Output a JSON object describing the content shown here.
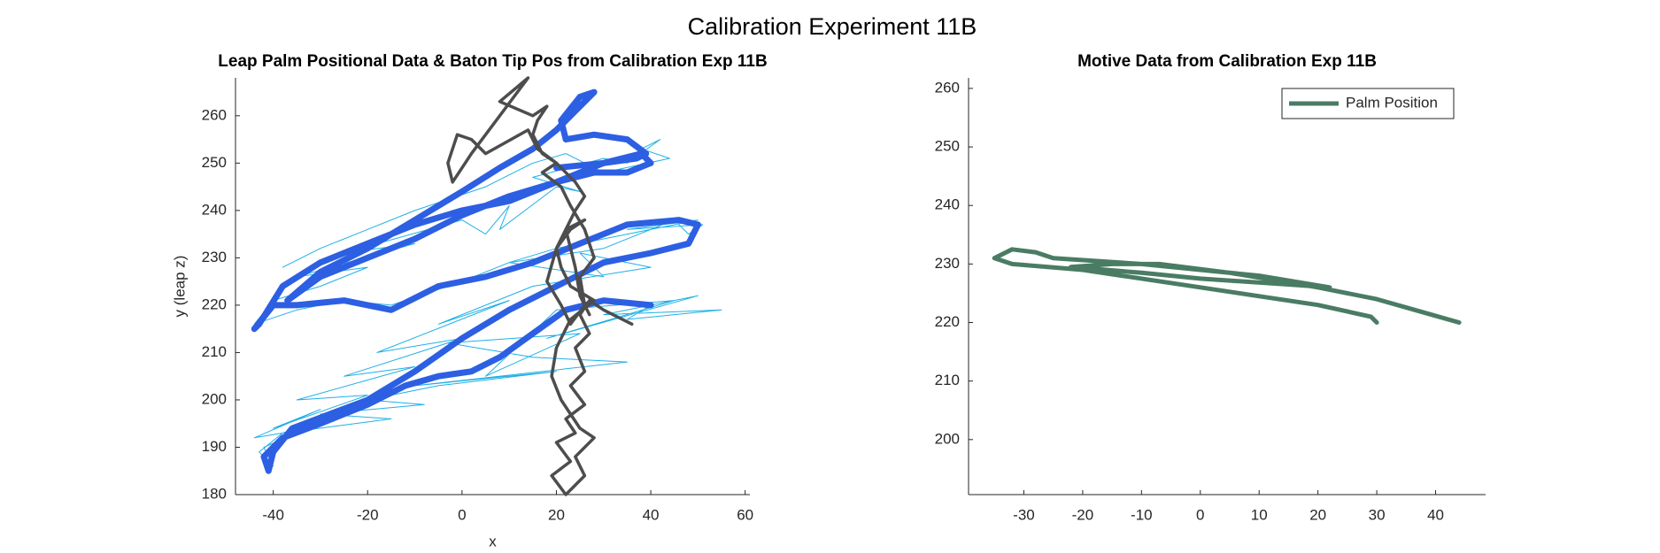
{
  "title": "Calibration Experiment 11B",
  "chart_data": [
    {
      "type": "line",
      "title": "Leap Palm Positional Data & Baton Tip Pos from Calibration Exp 11B",
      "xlabel": "x",
      "ylabel": "y (leap z)",
      "xlim": [
        -48,
        61
      ],
      "ylim": [
        180,
        268
      ],
      "xticks": [
        -40,
        -20,
        0,
        20,
        40,
        60
      ],
      "yticks": [
        180,
        190,
        200,
        210,
        220,
        230,
        240,
        250,
        260
      ],
      "series": [
        {
          "color": "#1fb0e6",
          "width": 1,
          "x": [
            40,
            35,
            55,
            30,
            50,
            18,
            45,
            20,
            5,
            25,
            -3,
            15,
            35,
            -10,
            20,
            -5,
            -20,
            -8,
            -30,
            -15,
            -38,
            -28,
            -42,
            -40,
            -43,
            -38,
            -44,
            -30,
            -40,
            -20,
            -35,
            -10,
            -25,
            0,
            -18,
            10,
            -5,
            15,
            40,
            25,
            30,
            10,
            30,
            45,
            48,
            51,
            35,
            50,
            20,
            10,
            0,
            -15,
            -25,
            -35,
            -44,
            -40,
            -30,
            -20,
            -35,
            -10,
            -25,
            0,
            5,
            10,
            8,
            20,
            25,
            15,
            30,
            35,
            42,
            38,
            44,
            30,
            22,
            15,
            5,
            -10,
            -20,
            -30,
            -38
          ],
          "values": [
            220,
            217,
            219,
            218,
            222,
            213,
            221,
            219,
            205,
            214,
            212,
            209,
            208,
            203,
            206,
            203,
            200,
            199,
            197,
            196,
            193,
            196,
            190,
            186,
            189,
            193,
            192,
            198,
            194,
            201,
            200,
            207,
            205,
            213,
            210,
            221,
            216,
            224,
            228,
            231,
            226,
            229,
            232,
            238,
            235,
            237,
            236,
            238,
            232,
            229,
            225,
            220,
            221,
            219,
            216,
            221,
            224,
            228,
            226,
            233,
            231,
            238,
            235,
            241,
            236,
            245,
            244,
            247,
            251,
            250,
            255,
            253,
            251,
            248,
            252,
            250,
            245,
            240,
            236,
            232,
            228
          ]
        },
        {
          "color": "#2d5fe3",
          "width": 7,
          "x": [
            40,
            30,
            22,
            15,
            8,
            2,
            -5,
            -12,
            -20,
            -30,
            -38,
            -42,
            -41,
            -40,
            -36,
            -28,
            -20,
            -10,
            0,
            10,
            20,
            30,
            40,
            48,
            50,
            46,
            35,
            25,
            15,
            5,
            -5,
            -15,
            -25,
            -35,
            -40,
            -44,
            -43,
            -38,
            -30,
            -20,
            -10,
            0,
            10,
            20,
            30,
            38,
            40,
            35,
            28,
            20,
            10,
            0,
            -10,
            -20,
            -30,
            -37,
            -30,
            -20,
            -10,
            0,
            8,
            15,
            20,
            25,
            28,
            25,
            21,
            22,
            28,
            35,
            39,
            37,
            30,
            20
          ],
          "values": [
            220,
            221,
            219,
            214,
            209,
            206,
            205,
            203,
            199,
            195,
            192,
            188,
            185,
            189,
            194,
            197,
            200,
            206,
            213,
            219,
            224,
            229,
            231,
            233,
            237,
            238,
            237,
            233,
            229,
            226,
            224,
            219,
            221,
            220,
            220,
            215,
            216,
            224,
            229,
            233,
            237,
            240,
            242,
            246,
            250,
            252,
            250,
            248,
            248,
            246,
            243,
            239,
            234,
            230,
            226,
            221,
            227,
            232,
            238,
            244,
            249,
            253,
            257,
            262,
            265,
            264,
            259,
            255,
            256,
            255,
            252,
            251,
            250,
            249
          ]
        },
        {
          "color": "#4d4d4d",
          "width": 3.5,
          "x": [
            36,
            30,
            27,
            25,
            27,
            24,
            26,
            23,
            26,
            22,
            24,
            20,
            23,
            19,
            22,
            26,
            24,
            28,
            25,
            23,
            21,
            19,
            20,
            23,
            28,
            23,
            21,
            20,
            22,
            26,
            23,
            20,
            18,
            21,
            23,
            26,
            25,
            28,
            26,
            23,
            21,
            17,
            20,
            16,
            14,
            5,
            2,
            -1,
            -3,
            -2,
            0,
            2,
            14,
            8,
            15,
            18,
            16,
            15,
            17,
            20,
            24,
            26,
            24,
            22,
            24,
            25,
            27
          ],
          "values": [
            216,
            219,
            221,
            218,
            214,
            211,
            206,
            203,
            199,
            196,
            193,
            191,
            187,
            184,
            180,
            184,
            188,
            192,
            194,
            197,
            200,
            205,
            211,
            217,
            221,
            224,
            228,
            232,
            236,
            238,
            236,
            232,
            225,
            220,
            216,
            220,
            226,
            230,
            236,
            241,
            245,
            248,
            250,
            253,
            257,
            252,
            255,
            256,
            250,
            246,
            249,
            252,
            268,
            263,
            260,
            262,
            259,
            256,
            252,
            250,
            246,
            243,
            240,
            236,
            228,
            222,
            218
          ]
        }
      ]
    },
    {
      "type": "line",
      "title": "Motive Data from Calibration Exp 11B",
      "xlim": [
        -39.4,
        48.5
      ],
      "ylim": [
        190.6,
        261.8
      ],
      "xticks": [
        -30,
        -20,
        -10,
        0,
        10,
        20,
        30,
        40
      ],
      "yticks": [
        200,
        210,
        220,
        230,
        240,
        250,
        260
      ],
      "legend": "upper right",
      "series": [
        {
          "name": "Palm Position",
          "color": "#4a7c64",
          "width": 5,
          "x": [
            30,
            29,
            20,
            0,
            -20,
            -32,
            -35,
            -32,
            -28,
            -25,
            -10,
            0,
            10,
            22,
            15,
            0,
            -10,
            -22,
            -15,
            -7,
            5,
            20,
            30,
            37,
            44
          ],
          "values": [
            220,
            221,
            223,
            226,
            229,
            230,
            231,
            232.5,
            232,
            231,
            230,
            229,
            228,
            226,
            226.5,
            227.5,
            228.5,
            229.5,
            230,
            230,
            228.5,
            226,
            224,
            222,
            220
          ]
        }
      ]
    }
  ]
}
